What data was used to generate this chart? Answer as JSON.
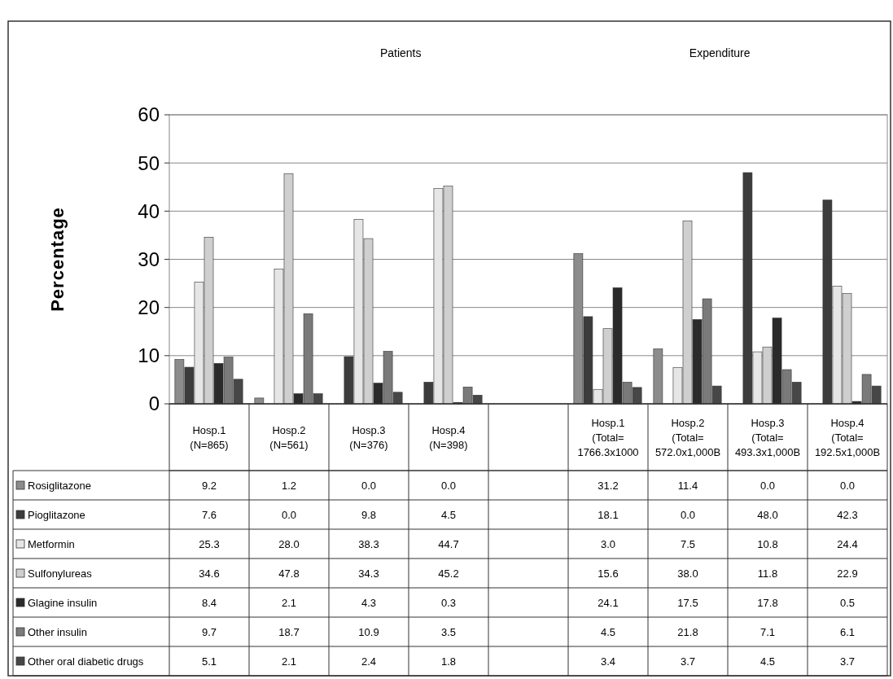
{
  "chart_data": {
    "type": "bar",
    "ylabel": "Percentage",
    "annotations": [
      "Patients",
      "Expenditure"
    ],
    "categories": [
      "Hosp.1 (N=865)",
      "Hosp.2 (N=561)",
      "Hosp.3 (N=376)",
      "Hosp.4 (N=398)",
      null,
      "Hosp.1 (Total= 1766.3x1000",
      "Hosp.2 (Total= 572.0x1,000B",
      "Hosp.3 (Total= 493.3x1,000B",
      "Hosp.4 (Total= 192.5x1,000B"
    ],
    "ylim": [
      0,
      60
    ],
    "yticks": [
      0,
      10,
      20,
      30,
      40,
      50,
      60
    ],
    "grid": "y",
    "legend": "bottom",
    "series": [
      {
        "name": "Rosiglitazone",
        "color": "#8c8c8c",
        "values": [
          9.2,
          1.2,
          0,
          0,
          null,
          31.2,
          11.4,
          0,
          0
        ],
        "value_labels": [
          "9.2",
          "1.2",
          "0.0",
          "0.0",
          null,
          "31.2",
          "11.4",
          "0.0",
          "0.0"
        ]
      },
      {
        "name": "Pioglitazone",
        "color": "#3c3c3c",
        "values": [
          7.6,
          0,
          9.8,
          4.5,
          null,
          18.1,
          0,
          48,
          42.3
        ],
        "value_labels": [
          "7.6",
          "0.0",
          "9.8",
          "4.5",
          null,
          "18.1",
          "0.0",
          "48.0",
          "42.3"
        ]
      },
      {
        "name": "Metformin",
        "color": "#e6e6e6",
        "values": [
          25.3,
          28,
          38.3,
          44.7,
          null,
          3,
          7.5,
          10.8,
          24.4
        ],
        "value_labels": [
          "25.3",
          "28.0",
          "38.3",
          "44.7",
          null,
          "3.0",
          "7.5",
          "10.8",
          "24.4"
        ]
      },
      {
        "name": "Sulfonylureas",
        "color": "#cfcfcf",
        "values": [
          34.6,
          47.8,
          34.3,
          45.2,
          null,
          15.6,
          38,
          11.8,
          22.9
        ],
        "value_labels": [
          "34.6",
          "47.8",
          "34.3",
          "45.2",
          null,
          "15.6",
          "38.0",
          "11.8",
          "22.9"
        ]
      },
      {
        "name": "Glagine insulin",
        "color": "#2a2a2a",
        "values": [
          8.4,
          2.1,
          4.3,
          0.3,
          null,
          24.1,
          17.5,
          17.8,
          0.5
        ],
        "value_labels": [
          "8.4",
          "2.1",
          "4.3",
          "0.3",
          null,
          "24.1",
          "17.5",
          "17.8",
          "0.5"
        ]
      },
      {
        "name": "Other insulin",
        "color": "#7a7a7a",
        "values": [
          9.7,
          18.7,
          10.9,
          3.5,
          null,
          4.5,
          21.8,
          7.1,
          6.1
        ],
        "value_labels": [
          "9.7",
          "18.7",
          "10.9",
          "3.5",
          null,
          "4.5",
          "21.8",
          "7.1",
          "6.1"
        ]
      },
      {
        "name": "Other oral diabetic drugs",
        "color": "#474747",
        "values": [
          5.1,
          2.1,
          2.4,
          1.8,
          null,
          3.4,
          3.7,
          4.5,
          3.7
        ],
        "value_labels": [
          "5.1",
          "2.1",
          "2.4",
          "1.8",
          null,
          "3.4",
          "3.7",
          "4.5",
          "3.7"
        ]
      }
    ]
  }
}
